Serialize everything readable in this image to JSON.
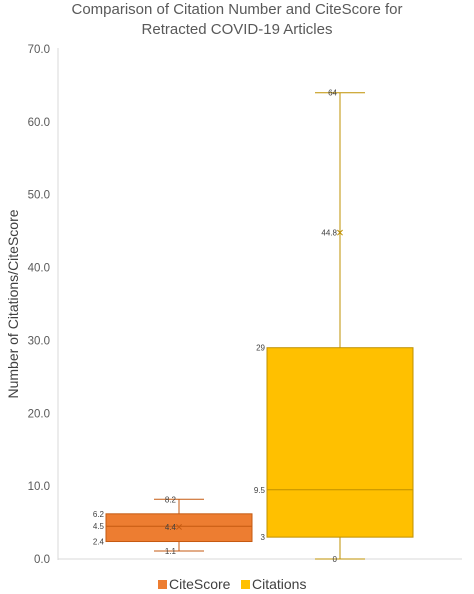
{
  "chart_data": {
    "type": "box",
    "title_lines": [
      "Comparison of Citation Number and CiteScore for",
      "Retracted COVID-19 Articles"
    ],
    "xlabel": "",
    "ylabel": "Number of Citations/CiteScore",
    "ylim": [
      0,
      70
    ],
    "yticks": [
      "0.0",
      "10.0",
      "20.0",
      "30.0",
      "40.0",
      "50.0",
      "60.0",
      "70.0"
    ],
    "grid": false,
    "legend_position": "bottom",
    "series": [
      {
        "name": "CiteScore",
        "color": "#ED7D31",
        "edge": "#C55A11",
        "min": 1.1,
        "q1": 2.4,
        "median": 4.5,
        "q3": 6.2,
        "max": 8.2,
        "mean": 4.4,
        "labels": {
          "max": "8.2",
          "q3": "6.2",
          "median": "4.5",
          "mean": "4.4",
          "q1": "2.4",
          "min": "1.1"
        }
      },
      {
        "name": "Citations",
        "color": "#FFC000",
        "edge": "#BF9000",
        "min": 0,
        "q1": 3,
        "median": 9.5,
        "q3": 29,
        "max": 64,
        "mean": 44.8,
        "labels": {
          "max": "64",
          "q3": "29",
          "median": "9.5",
          "mean": "44.8",
          "q1": "3",
          "min": "0"
        }
      }
    ]
  }
}
